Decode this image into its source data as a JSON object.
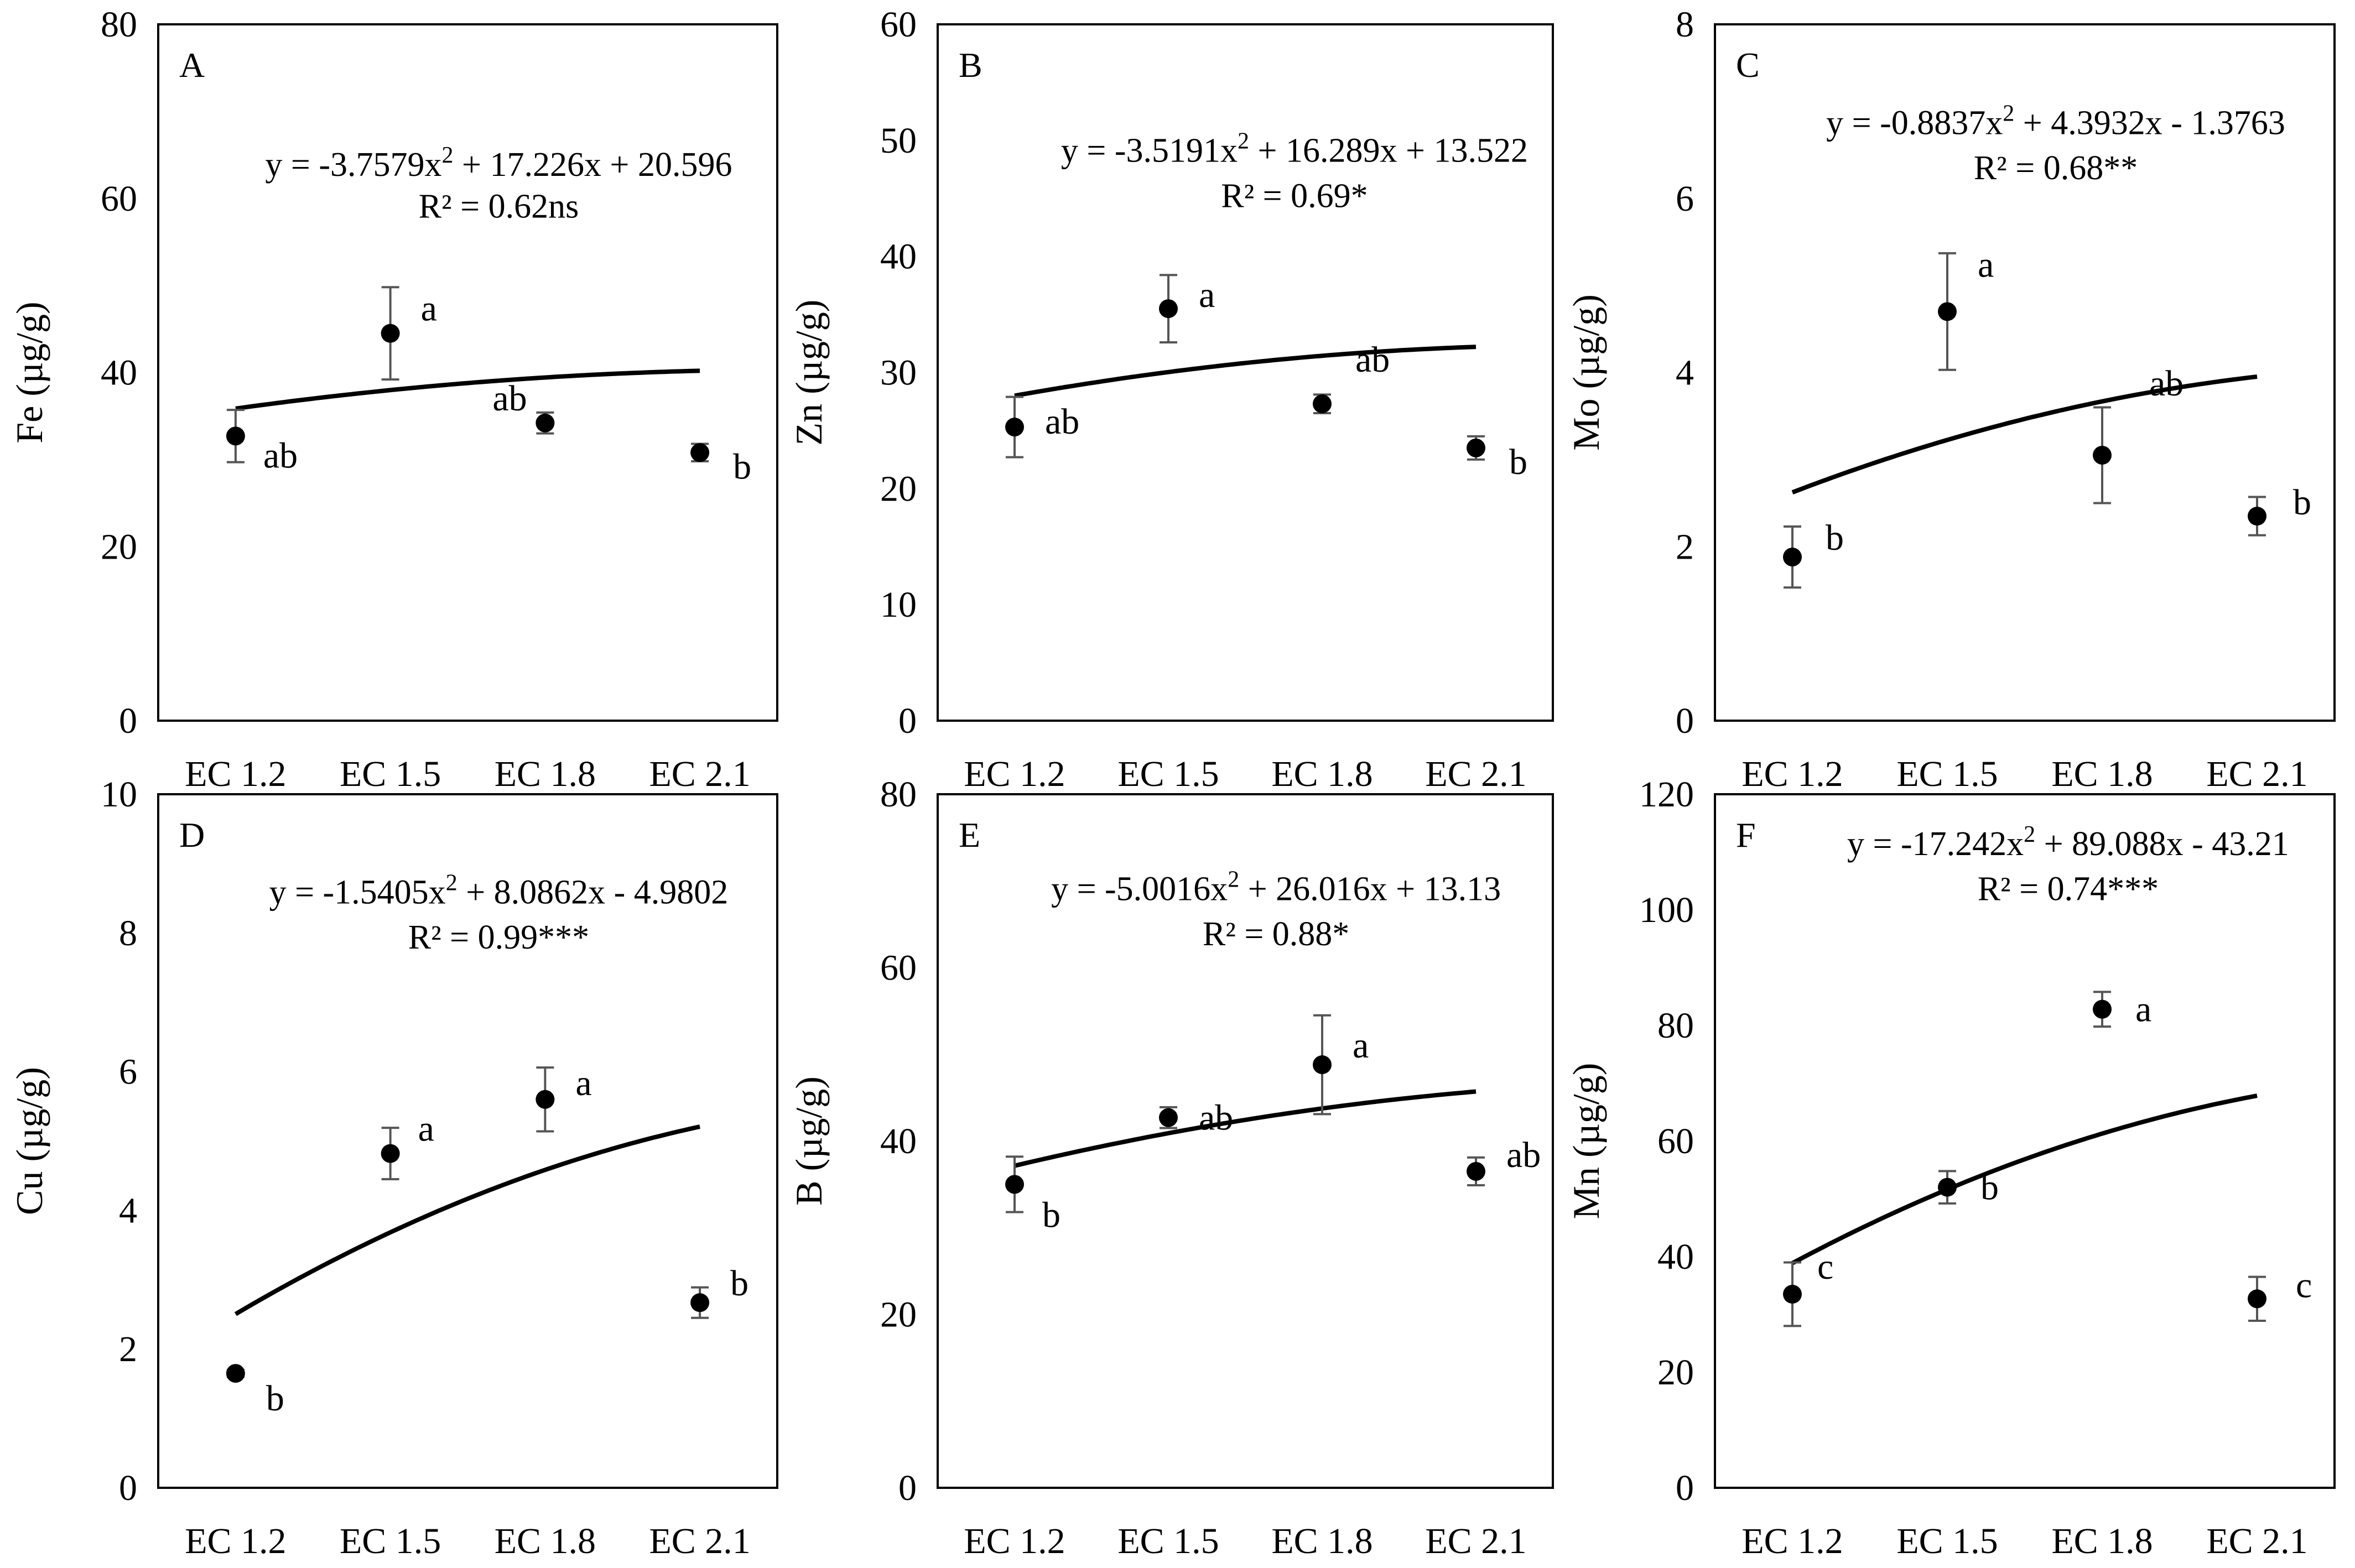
{
  "figure": {
    "chart_data": [
      {
        "type": "scatter",
        "panel_label": "A",
        "ylabel": "Fe (µg/g)",
        "xlabel": "",
        "categories": [
          "EC 1.2",
          "EC 1.5",
          "EC 1.8",
          "EC 2.1"
        ],
        "values": [
          32.7,
          44.5,
          34.2,
          30.8
        ],
        "errors": [
          3.0,
          5.3,
          1.2,
          1.0
        ],
        "letters": [
          "ab",
          "a",
          "ab",
          "b"
        ],
        "ylim": [
          0,
          80
        ],
        "yticks": [
          "0",
          "20",
          "40",
          "60",
          "80"
        ],
        "fit": {
          "a": -3.7579,
          "b": 17.226,
          "c": 20.596
        },
        "equation_lhs": "y = -3.7579x",
        "equation_sup": "2",
        "equation_rhs": " + 17.226x + 20.596",
        "r2": "R² = 0.62ns"
      },
      {
        "type": "scatter",
        "panel_label": "B",
        "ylabel": "Zn (µg/g)",
        "xlabel": "",
        "categories": [
          "EC 1.2",
          "EC 1.5",
          "EC 1.8",
          "EC 2.1"
        ],
        "values": [
          25.3,
          35.5,
          27.3,
          23.5
        ],
        "errors": [
          2.6,
          2.9,
          0.8,
          1.0
        ],
        "letters": [
          "ab",
          "a",
          "ab",
          "b"
        ],
        "ylim": [
          0,
          60
        ],
        "yticks": [
          "0",
          "10",
          "20",
          "30",
          "40",
          "50",
          "60"
        ],
        "fit": {
          "a": -3.5191,
          "b": 16.289,
          "c": 13.522
        },
        "equation_lhs": "y = -3.5191x",
        "equation_sup": "2",
        "equation_rhs": " + 16.289x + 13.522",
        "r2": "R² = 0.69*"
      },
      {
        "type": "scatter",
        "panel_label": "C",
        "ylabel": "Mo (µg/g)",
        "xlabel": "",
        "categories": [
          "EC 1.2",
          "EC 1.5",
          "EC 1.8",
          "EC 2.1"
        ],
        "values": [
          1.88,
          4.7,
          3.05,
          2.35
        ],
        "errors": [
          0.35,
          0.67,
          0.55,
          0.22
        ],
        "letters": [
          "b",
          "a",
          "ab",
          "b"
        ],
        "ylim": [
          0,
          8
        ],
        "yticks": [
          "0",
          "2",
          "4",
          "6",
          "8"
        ],
        "fit": {
          "a": -0.8837,
          "b": 4.3932,
          "c": -1.3763
        },
        "equation_lhs": "y = -0.8837x",
        "equation_sup": "2",
        "equation_rhs": " + 4.3932x - 1.3763",
        "r2": "R² = 0.68**"
      },
      {
        "type": "scatter",
        "panel_label": "D",
        "ylabel": "Cu (µg/g)",
        "xlabel": "",
        "categories": [
          "EC 1.2",
          "EC 1.5",
          "EC 1.8",
          "EC 2.1"
        ],
        "values": [
          1.65,
          4.82,
          5.6,
          2.67
        ],
        "errors": [
          0.05,
          0.37,
          0.46,
          0.22
        ],
        "letters": [
          "b",
          "a",
          "a",
          "b"
        ],
        "ylim": [
          0,
          10
        ],
        "yticks": [
          "0",
          "2",
          "4",
          "6",
          "8",
          "10"
        ],
        "fit": {
          "a": -1.5405,
          "b": 8.0862,
          "c": -4.9802
        },
        "equation_lhs": "y = -1.5405x",
        "equation_sup": "2",
        "equation_rhs": " + 8.0862x - 4.9802",
        "r2": "R² = 0.99***"
      },
      {
        "type": "scatter",
        "panel_label": "E",
        "ylabel": "B (µg/g)",
        "xlabel": "",
        "categories": [
          "EC 1.2",
          "EC 1.5",
          "EC 1.8",
          "EC 2.1"
        ],
        "values": [
          35.0,
          42.7,
          48.8,
          36.5
        ],
        "errors": [
          3.2,
          1.2,
          5.7,
          1.6
        ],
        "letters": [
          "b",
          "ab",
          "a",
          "ab"
        ],
        "ylim": [
          0,
          80
        ],
        "yticks": [
          "0",
          "20",
          "40",
          "60",
          "80"
        ],
        "fit": {
          "a": -5.0016,
          "b": 26.016,
          "c": 13.13
        },
        "equation_lhs": "y = -5.0016x",
        "equation_sup": "2",
        "equation_rhs": " + 26.016x + 13.13",
        "r2": "R² = 0.88*"
      },
      {
        "type": "scatter",
        "panel_label": "F",
        "ylabel": "Mn (µg/g)",
        "xlabel": "",
        "categories": [
          "EC 1.2",
          "EC 1.5",
          "EC 1.8",
          "EC 2.1"
        ],
        "values": [
          33.5,
          52.0,
          82.8,
          32.7
        ],
        "errors": [
          5.5,
          2.8,
          3.0,
          3.8
        ],
        "letters": [
          "c",
          "b",
          "a",
          "c"
        ],
        "ylim": [
          0,
          120
        ],
        "yticks": [
          "0",
          "20",
          "40",
          "60",
          "80",
          "100",
          "120"
        ],
        "fit": {
          "a": -17.242,
          "b": 89.088,
          "c": -43.21
        },
        "equation_lhs": "y = -17.242x",
        "equation_sup": "2",
        "equation_rhs": " + 89.088x - 43.21",
        "r2": "R² = 0.74***"
      }
    ]
  }
}
